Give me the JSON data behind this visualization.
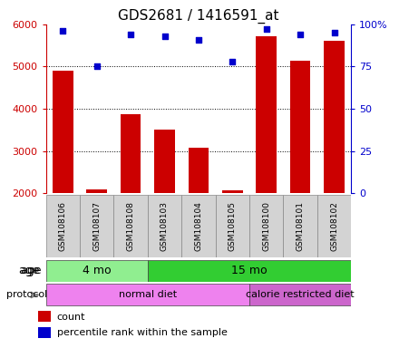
{
  "title": "GDS2681 / 1416591_at",
  "samples": [
    "GSM108106",
    "GSM108107",
    "GSM108108",
    "GSM108103",
    "GSM108104",
    "GSM108105",
    "GSM108100",
    "GSM108101",
    "GSM108102"
  ],
  "counts": [
    4900,
    2080,
    3880,
    3500,
    3080,
    2060,
    5720,
    5130,
    5620
  ],
  "percentile_ranks": [
    96,
    75,
    94,
    93,
    91,
    78,
    97,
    94,
    95
  ],
  "ylim_left": [
    2000,
    6000
  ],
  "ylim_right": [
    0,
    100
  ],
  "left_ticks": [
    2000,
    3000,
    4000,
    5000,
    6000
  ],
  "right_ticks": [
    0,
    25,
    50,
    75,
    100
  ],
  "right_tick_labels": [
    "0",
    "25",
    "50",
    "75",
    "100%"
  ],
  "age_groups": [
    {
      "label": "4 mo",
      "start": 0,
      "end": 3,
      "color": "#90ee90"
    },
    {
      "label": "15 mo",
      "start": 3,
      "end": 9,
      "color": "#32cd32"
    }
  ],
  "protocol_groups": [
    {
      "label": "normal diet",
      "start": 0,
      "end": 6,
      "color": "#ee82ee"
    },
    {
      "label": "calorie restricted diet",
      "start": 6,
      "end": 9,
      "color": "#cc66cc"
    }
  ],
  "bar_color": "#cc0000",
  "dot_color": "#0000cc",
  "left_axis_color": "#cc0000",
  "right_axis_color": "#0000cc",
  "bar_width": 0.6,
  "sample_box_color": "#d3d3d3",
  "legend_count_color": "#cc0000",
  "legend_pct_color": "#0000cc",
  "dot_size": 20
}
